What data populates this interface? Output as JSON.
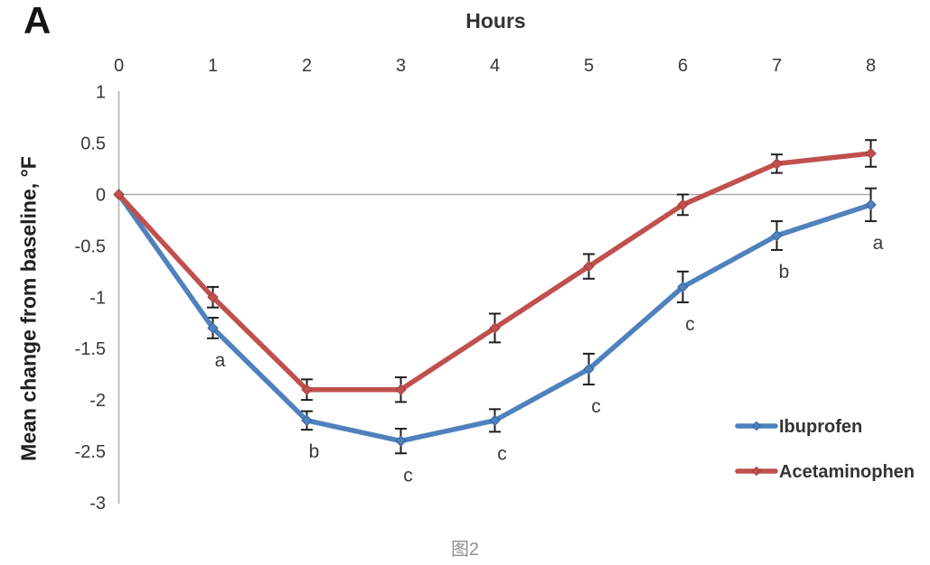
{
  "panel_label": "A",
  "caption": "图2",
  "chart_data": {
    "type": "line",
    "title": "Hours",
    "xlabel": "Hours",
    "ylabel": "Mean change from baseline, °F",
    "x": [
      0,
      1,
      2,
      3,
      4,
      5,
      6,
      7,
      8
    ],
    "x_tick_labels": [
      "0",
      "1",
      "2",
      "3",
      "4",
      "5",
      "6",
      "7",
      "8"
    ],
    "y_tick_labels": [
      "1",
      "0.5",
      "0",
      "-0.5",
      "-1",
      "-1.5",
      "-2",
      "-2.5",
      "-3"
    ],
    "xlim": [
      0,
      8
    ],
    "ylim": [
      -3,
      1
    ],
    "x_axis_position": "top",
    "grid": "zero-line-only",
    "legend_position": "inside-right-bottom",
    "error_bars": true,
    "series": [
      {
        "name": "Ibuprofen",
        "color": "#4f81bd",
        "marker_stroke": "#38629e",
        "values": [
          0,
          -1.3,
          -2.2,
          -2.4,
          -2.2,
          -1.7,
          -0.9,
          -0.4,
          -0.1
        ],
        "errors": [
          0,
          0.1,
          0.09,
          0.12,
          0.11,
          0.15,
          0.15,
          0.14,
          0.16
        ],
        "point_labels": [
          "",
          "a",
          "b",
          "c",
          "c",
          "c",
          "c",
          "b",
          "a"
        ]
      },
      {
        "name": "Acetaminophen",
        "color": "#c0504d",
        "marker_stroke": "#9e3f3d",
        "values": [
          0,
          -1.0,
          -1.9,
          -1.9,
          -1.3,
          -0.7,
          -0.1,
          0.3,
          0.4
        ],
        "errors": [
          0,
          0.1,
          0.1,
          0.12,
          0.14,
          0.12,
          0.1,
          0.09,
          0.13
        ],
        "point_labels": [
          "",
          "",
          "",
          "",
          "",
          "",
          "",
          "",
          ""
        ]
      }
    ],
    "colors": {
      "axis": "#b3b3b3",
      "zero_line": "#ababab",
      "tick_text": "#383838",
      "error_bar": "#1f1f1f",
      "annotation": "#3a3a3a",
      "legend_text": "#333333",
      "caption": "#8f8f8f"
    }
  }
}
